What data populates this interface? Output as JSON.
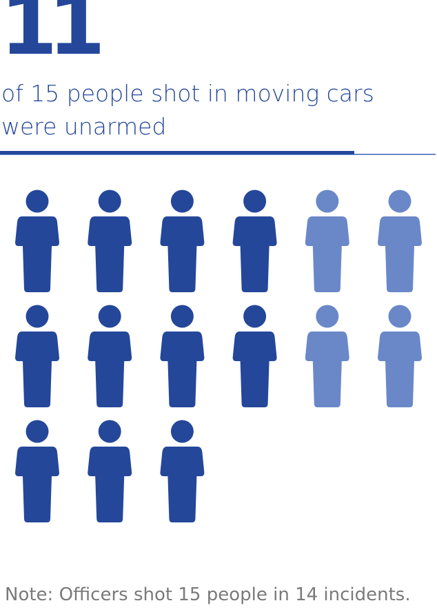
{
  "chart_data": {
    "type": "pictograph",
    "headline_number": "11",
    "headline_text": "of 15 people shot in moving cars were unarmed",
    "total": 15,
    "highlighted": 11,
    "highlight_color": "#24479a",
    "other_color": "#6a88c8",
    "note": "Note: Officers shot 15 people in 14 incidents."
  }
}
